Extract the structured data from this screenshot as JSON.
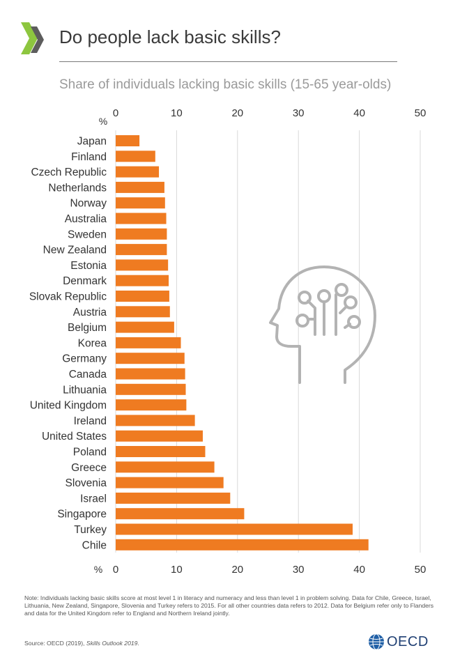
{
  "header": {
    "title": "Do people lack basic skills?",
    "subtitle": "Share of individuals lacking basic skills (15-65 year-olds)"
  },
  "colors": {
    "bar": "#ef7b21",
    "grid": "#d9d9d9",
    "brand_green": "#8dc63f",
    "brand_dark": "#5d5d5d",
    "oecd_blue": "#1f3f73"
  },
  "icons": [
    "oecd-chevron-logo",
    "head-circuit-icon",
    "oecd-globe-icon"
  ],
  "chart_data": {
    "type": "bar",
    "orientation": "horizontal",
    "axis_unit_label": "%",
    "xlim": [
      0,
      50
    ],
    "xticks": [
      0,
      10,
      20,
      30,
      40,
      50
    ],
    "axis_position": "top and bottom",
    "grid": true,
    "categories": [
      "Japan",
      "Finland",
      "Czech Republic",
      "Netherlands",
      "Norway",
      "Australia",
      "Sweden",
      "New Zealand",
      "Estonia",
      "Denmark",
      "Slovak Republic",
      "Austria",
      "Belgium",
      "Korea",
      "Germany",
      "Canada",
      "Lithuania",
      "United Kingdom",
      "Ireland",
      "United States",
      "Poland",
      "Greece",
      "Slovenia",
      "Israel",
      "Singapore",
      "Turkey",
      "Chile"
    ],
    "values": [
      3.9,
      6.5,
      7.1,
      8.0,
      8.1,
      8.3,
      8.4,
      8.4,
      8.6,
      8.7,
      8.8,
      8.9,
      9.6,
      10.7,
      11.3,
      11.4,
      11.5,
      11.6,
      13.0,
      14.3,
      14.7,
      16.2,
      17.7,
      18.8,
      21.1,
      38.9,
      41.5
    ]
  },
  "footer": {
    "note": "Note: Individuals lacking basic skills score at most level 1 in literacy and numeracy and less than level 1 in problem solving. Data for Chile, Greece, Israel, Lithuania, New Zealand, Singapore, Slovenia and Turkey refers to 2015. For all other countries data refers to 2012. Data for Belgium refer only to Flanders and data for the United Kingdom refer to England and Northern Ireland jointly.",
    "source_prefix": "Source: OECD (2019), ",
    "source_title": "Skills Outlook 2019",
    "source_suffix": ".",
    "brand": "OECD"
  }
}
